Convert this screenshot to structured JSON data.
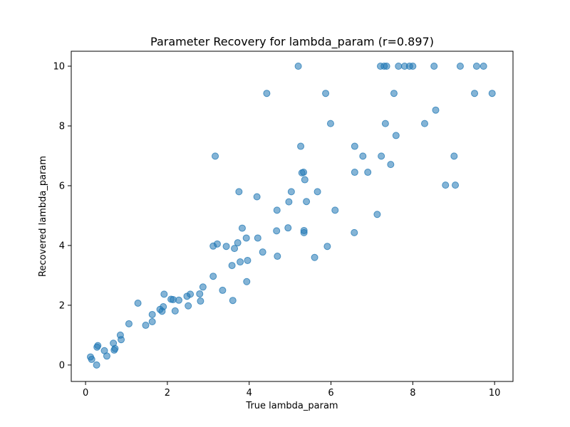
{
  "chart_data": {
    "type": "scatter",
    "title": "Parameter Recovery for lambda_param (r=0.897)",
    "xlabel": "True lambda_param",
    "ylabel": "Recovered lambda_param",
    "xlim": [
      -0.35,
      10.45
    ],
    "ylim": [
      -0.55,
      10.5
    ],
    "xticks": [
      0,
      2,
      4,
      6,
      8,
      10
    ],
    "yticks": [
      0,
      2,
      4,
      6,
      8,
      10
    ],
    "grid": false,
    "legend": "none",
    "point_color": "#1f77b4",
    "point_alpha": 0.55,
    "points": [
      [
        0.12,
        0.27
      ],
      [
        0.15,
        0.19
      ],
      [
        0.28,
        0.6
      ],
      [
        0.3,
        0.65
      ],
      [
        0.27,
        0.0
      ],
      [
        0.46,
        0.48
      ],
      [
        0.52,
        0.3
      ],
      [
        0.68,
        0.73
      ],
      [
        0.7,
        0.5
      ],
      [
        0.72,
        0.55
      ],
      [
        0.85,
        1.0
      ],
      [
        0.87,
        0.85
      ],
      [
        1.06,
        1.38
      ],
      [
        1.28,
        2.07
      ],
      [
        1.47,
        1.33
      ],
      [
        1.63,
        1.69
      ],
      [
        1.63,
        1.45
      ],
      [
        1.82,
        1.86
      ],
      [
        1.87,
        1.8
      ],
      [
        1.9,
        1.95
      ],
      [
        1.92,
        2.37
      ],
      [
        2.09,
        2.2
      ],
      [
        2.14,
        2.19
      ],
      [
        2.19,
        1.81
      ],
      [
        2.28,
        2.17
      ],
      [
        2.48,
        2.3
      ],
      [
        2.51,
        1.98
      ],
      [
        2.56,
        2.37
      ],
      [
        2.79,
        2.38
      ],
      [
        2.81,
        2.14
      ],
      [
        2.87,
        2.61
      ],
      [
        3.12,
        2.97
      ],
      [
        3.12,
        3.98
      ],
      [
        3.17,
        6.99
      ],
      [
        3.22,
        4.05
      ],
      [
        3.35,
        2.5
      ],
      [
        3.44,
        3.97
      ],
      [
        3.58,
        3.33
      ],
      [
        3.6,
        2.16
      ],
      [
        3.64,
        3.9
      ],
      [
        3.72,
        4.09
      ],
      [
        3.75,
        5.8
      ],
      [
        3.78,
        3.45
      ],
      [
        3.83,
        4.58
      ],
      [
        3.93,
        4.25
      ],
      [
        3.94,
        2.79
      ],
      [
        3.96,
        3.5
      ],
      [
        4.19,
        5.63
      ],
      [
        4.21,
        4.25
      ],
      [
        4.33,
        3.78
      ],
      [
        4.43,
        9.09
      ],
      [
        4.67,
        4.49
      ],
      [
        4.68,
        5.18
      ],
      [
        4.69,
        3.64
      ],
      [
        4.95,
        4.59
      ],
      [
        4.97,
        5.46
      ],
      [
        5.03,
        5.8
      ],
      [
        5.2,
        10.0
      ],
      [
        5.26,
        7.32
      ],
      [
        5.29,
        6.43
      ],
      [
        5.33,
        6.45
      ],
      [
        5.34,
        4.5
      ],
      [
        5.34,
        4.43
      ],
      [
        5.36,
        6.2
      ],
      [
        5.4,
        5.47
      ],
      [
        5.6,
        3.6
      ],
      [
        5.67,
        5.8
      ],
      [
        5.87,
        9.09
      ],
      [
        5.91,
        3.97
      ],
      [
        5.99,
        8.08
      ],
      [
        6.1,
        5.18
      ],
      [
        6.57,
        4.43
      ],
      [
        6.58,
        7.32
      ],
      [
        6.58,
        6.45
      ],
      [
        6.78,
        6.99
      ],
      [
        6.9,
        6.45
      ],
      [
        7.13,
        5.04
      ],
      [
        7.21,
        10.0
      ],
      [
        7.23,
        6.99
      ],
      [
        7.3,
        10.0
      ],
      [
        7.33,
        8.08
      ],
      [
        7.36,
        10.0
      ],
      [
        7.46,
        6.71
      ],
      [
        7.54,
        9.09
      ],
      [
        7.59,
        7.68
      ],
      [
        7.65,
        10.0
      ],
      [
        7.8,
        10.0
      ],
      [
        7.92,
        10.0
      ],
      [
        8.0,
        10.0
      ],
      [
        8.29,
        8.08
      ],
      [
        8.52,
        10.0
      ],
      [
        8.56,
        8.53
      ],
      [
        8.8,
        6.02
      ],
      [
        9.01,
        6.99
      ],
      [
        9.04,
        6.02
      ],
      [
        9.16,
        10.0
      ],
      [
        9.51,
        9.09
      ],
      [
        9.56,
        10.0
      ],
      [
        9.73,
        10.0
      ],
      [
        9.94,
        9.09
      ]
    ]
  }
}
